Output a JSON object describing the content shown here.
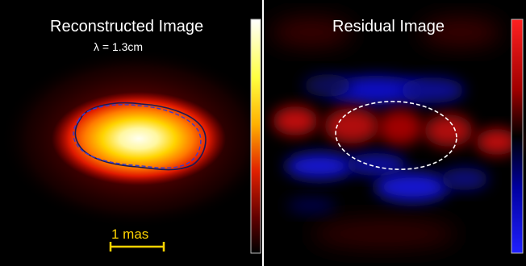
{
  "left_panel": {
    "title": "Reconstructed Image",
    "wavelength": "λ = 1.3cm",
    "scale_bar_label": "1 mas",
    "colormap": "black-red-yellow-white",
    "contour_colors": {
      "solid": "#1a1a55",
      "dashed": "#3b3bd0"
    }
  },
  "right_panel": {
    "title": "Residual Image",
    "colormap": "blue-black-red",
    "ellipse_color": "#ffffff"
  },
  "colors": {
    "background": "#000000",
    "scale_bar": "#ffd400"
  }
}
